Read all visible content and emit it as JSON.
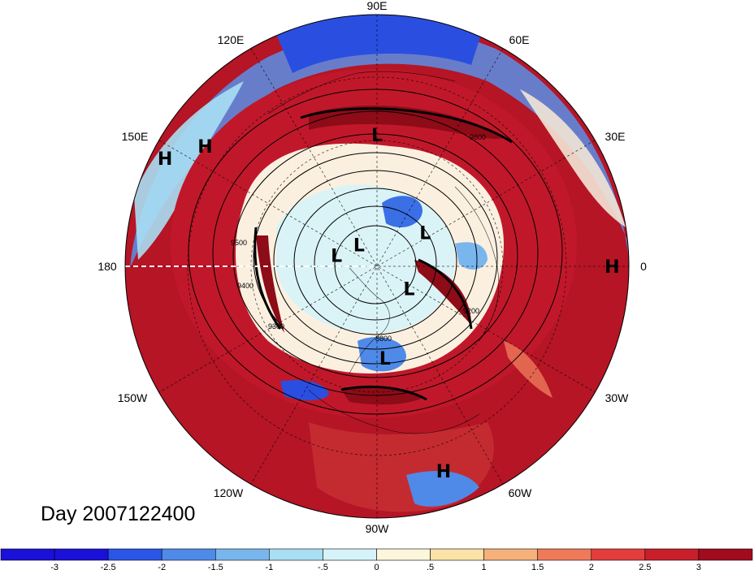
{
  "title": "Day 2007122400",
  "longitude_labels": [
    "90E",
    "60E",
    "30E",
    "0",
    "30W",
    "60W",
    "90W",
    "120W",
    "150W",
    "180",
    "150E",
    "120E"
  ],
  "pressure_centers": [
    {
      "label": "L",
      "lon": 90,
      "lat": 43
    },
    {
      "label": "L",
      "lon": 35,
      "lat": 69
    },
    {
      "label": "L",
      "lon": 130,
      "lat": 80
    },
    {
      "label": "L",
      "lon": 165,
      "lat": 75
    },
    {
      "label": "L",
      "lon": -35,
      "lat": 76
    },
    {
      "label": "L",
      "lon": -85,
      "lat": 57
    },
    {
      "label": "H",
      "lon": 153,
      "lat": 5
    },
    {
      "label": "H",
      "lon": 145,
      "lat": 15
    },
    {
      "label": "H",
      "lon": 0,
      "lat": 6
    },
    {
      "label": "H",
      "lon": -72,
      "lat": 13
    }
  ],
  "contour_labels": [
    "9600",
    "9500",
    "9400",
    "9300",
    "8800",
    "9200"
  ],
  "colorbar": {
    "ticks": [
      "-3",
      "-2.5",
      "-2",
      "-1.5",
      "-1",
      "-.5",
      "0",
      ".5",
      "1",
      "1.5",
      "2",
      "2.5",
      "3"
    ],
    "colors": [
      "#1a10d8",
      "#2a55e6",
      "#4f8ae8",
      "#7ab6ee",
      "#a8dff4",
      "#d6f3fa",
      "#fbf6dc",
      "#fbe2a6",
      "#f6b07a",
      "#ee7a5a",
      "#e43d3d",
      "#c81f2a",
      "#a00c1e"
    ]
  },
  "colors": {
    "background": "#ffffff",
    "ocean_red": "#b01220",
    "strong_red": "#c81f2a",
    "blue": "#2a55e6"
  }
}
